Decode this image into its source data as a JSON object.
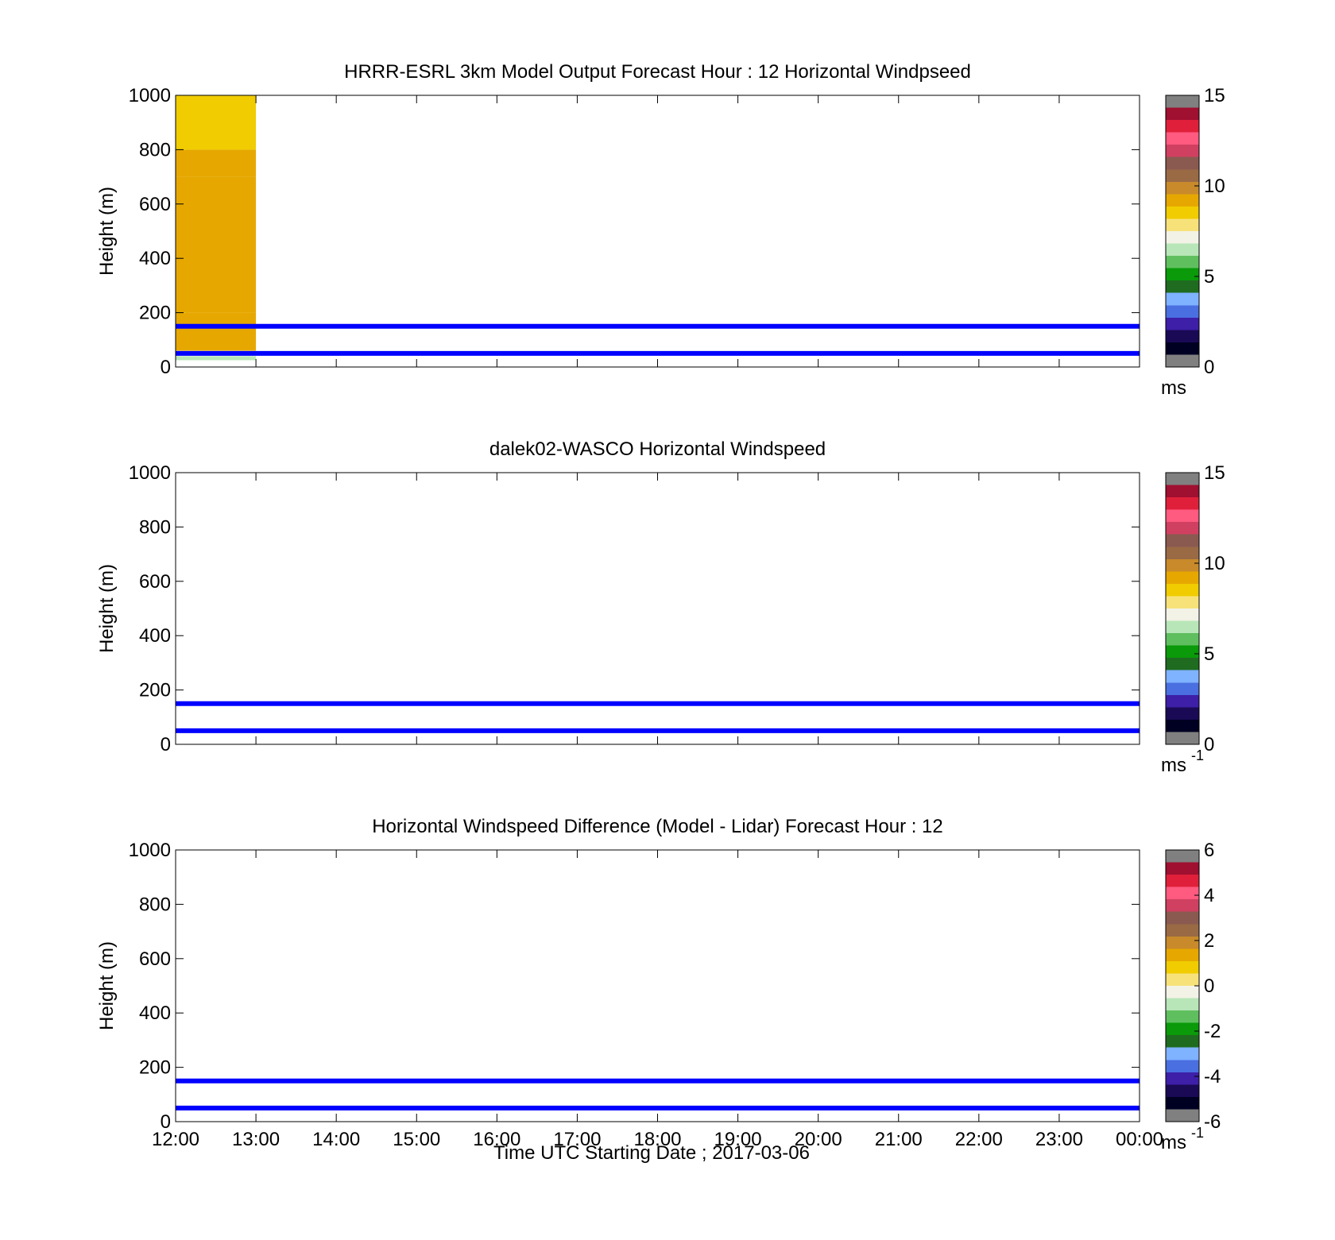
{
  "figure": {
    "background": "#ffffff"
  },
  "colormaps": {
    "windspeed": [
      "#808080",
      "#000022",
      "#1a0a55",
      "#3d1fa8",
      "#4a6fe0",
      "#7fb2ff",
      "#1f6b1f",
      "#0a9a0a",
      "#5fbf5f",
      "#b8e6b8",
      "#f2f2e6",
      "#f7e27a",
      "#f0cc00",
      "#e6a800",
      "#c88a2a",
      "#9a6a45",
      "#8a5a50",
      "#d04060",
      "#ff5a80",
      "#e0203a",
      "#a01030",
      "#808080"
    ],
    "difference": [
      "#808080",
      "#000022",
      "#1a0a55",
      "#3d1fa8",
      "#4a6fe0",
      "#7fb2ff",
      "#1f6b1f",
      "#0a9a0a",
      "#5fbf5f",
      "#b8e6b8",
      "#f2f2e6",
      "#f7e27a",
      "#f0cc00",
      "#e6a800",
      "#c88a2a",
      "#9a6a45",
      "#8a5a50",
      "#d04060",
      "#ff5a80",
      "#e0203a",
      "#a01030",
      "#808080"
    ]
  },
  "xaxis": {
    "ticks": [
      "12:00",
      "13:00",
      "14:00",
      "15:00",
      "16:00",
      "17:00",
      "18:00",
      "19:00",
      "20:00",
      "21:00",
      "22:00",
      "23:00",
      "00:00"
    ],
    "label": "Time UTC  Starting Date ; 2017-03-06"
  },
  "chart_data": [
    {
      "type": "heatmap",
      "title": "HRRR-ESRL 3km Model Output   Forecast Hour : 12 Horizontal Windpseed",
      "ylabel": "Height (m)",
      "ylim": [
        0,
        1000
      ],
      "yticks": [
        "0",
        "200",
        "400",
        "600",
        "800",
        "1000"
      ],
      "xlim": [
        0,
        12
      ],
      "colorbar": {
        "min": 0,
        "max": 15,
        "ticks": [
          "0",
          "5",
          "10",
          "15"
        ],
        "unit": "ms",
        "unit_sup": "",
        "colormap": "windspeed"
      },
      "hlines": [
        50,
        150
      ],
      "hline_color": "#0000ff",
      "cells": [
        {
          "x0": 0,
          "x1": 1,
          "y0": 25,
          "y1": 40,
          "value": 6.0
        },
        {
          "x0": 0,
          "x1": 1,
          "y0": 40,
          "y1": 60,
          "value": 7.4
        },
        {
          "x0": 0,
          "x1": 1,
          "y0": 60,
          "y1": 200,
          "value": 9.3
        },
        {
          "x0": 0,
          "x1": 1,
          "y0": 200,
          "y1": 700,
          "value": 9.0
        },
        {
          "x0": 0,
          "x1": 1,
          "y0": 700,
          "y1": 800,
          "value": 9.2
        },
        {
          "x0": 0,
          "x1": 1,
          "y0": 800,
          "y1": 1000,
          "value": 8.5
        }
      ]
    },
    {
      "type": "heatmap",
      "title": "dalek02-WASCO  Horizontal Windspeed",
      "ylabel": "Height (m)",
      "ylim": [
        0,
        1000
      ],
      "yticks": [
        "0",
        "200",
        "400",
        "600",
        "800",
        "1000"
      ],
      "xlim": [
        0,
        12
      ],
      "colorbar": {
        "min": 0,
        "max": 15,
        "ticks": [
          "0",
          "5",
          "10",
          "15"
        ],
        "unit": "ms",
        "unit_sup": "-1",
        "colormap": "windspeed"
      },
      "hlines": [
        50,
        150
      ],
      "hline_color": "#0000ff",
      "cells": []
    },
    {
      "type": "heatmap",
      "title": "Horizontal Windspeed Difference (Model - Lidar) Forecast Hour : 12",
      "ylabel": "Height (m)",
      "ylim": [
        0,
        1000
      ],
      "yticks": [
        "0",
        "200",
        "400",
        "600",
        "800",
        "1000"
      ],
      "xlim": [
        0,
        12
      ],
      "colorbar": {
        "min": -6,
        "max": 6,
        "ticks": [
          "-6",
          "-4",
          "-2",
          "0",
          "2",
          "4",
          "6"
        ],
        "unit": "ms",
        "unit_sup": "-1",
        "colormap": "difference"
      },
      "hlines": [
        50,
        150
      ],
      "hline_color": "#0000ff",
      "cells": []
    }
  ]
}
